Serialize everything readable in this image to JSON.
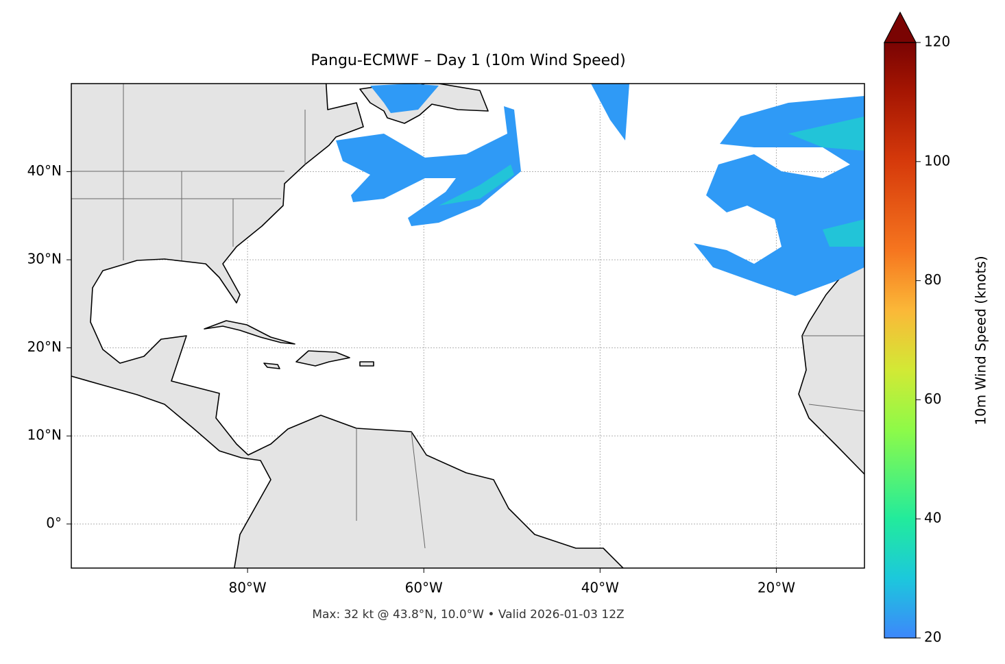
{
  "title": "Pangu-ECMWF – Day 1 (10m Wind Speed)",
  "footer": "Max: 32 kt @ 43.8°N, 10.0°W • Valid 2026-01-03 12Z",
  "map": {
    "xlim": [
      -100,
      -10
    ],
    "ylim": [
      -5,
      50
    ],
    "xticks": [
      {
        "value": -80,
        "label": "80°W"
      },
      {
        "value": -60,
        "label": "60°W"
      },
      {
        "value": -40,
        "label": "40°W"
      },
      {
        "value": -20,
        "label": "20°W"
      }
    ],
    "yticks": [
      {
        "value": 0,
        "label": "0°"
      },
      {
        "value": 10,
        "label": "10°N"
      },
      {
        "value": 20,
        "label": "20°N"
      },
      {
        "value": 30,
        "label": "30°N"
      },
      {
        "value": 40,
        "label": "40°N"
      }
    ],
    "grid": true
  },
  "colorbar": {
    "label": "10m Wind Speed (knots)",
    "lim": [
      20,
      120
    ],
    "ticks": [
      20,
      40,
      60,
      80,
      100,
      120
    ],
    "extend": "max"
  }
}
